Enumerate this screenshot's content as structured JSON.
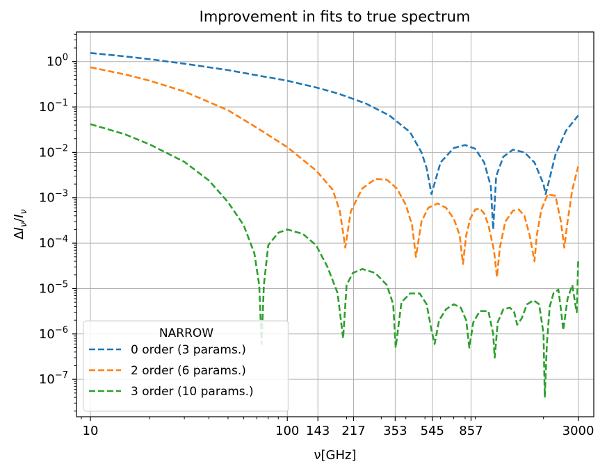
{
  "chart_data": {
    "type": "line",
    "title": "Improvement in fits to true spectrum",
    "xlabel": "ν[GHz]",
    "ylabel": "ΔIν/Iν",
    "x_scale": "log",
    "y_scale": "log",
    "xlim": [
      8.5,
      3600
    ],
    "ylim": [
      1.5e-08,
      4.5
    ],
    "grid": true,
    "x_ticks": [
      10,
      100,
      143,
      217,
      353,
      545,
      857,
      3000
    ],
    "x_tick_labels": [
      "10",
      "100",
      "143",
      "217",
      "353",
      "545",
      "857",
      "3000"
    ],
    "y_ticks": [
      1e-07,
      1e-06,
      1e-05,
      0.0001,
      0.001,
      0.01,
      0.1,
      1
    ],
    "y_tick_labels": [
      {
        "base": "10",
        "exp": "−7"
      },
      {
        "base": "10",
        "exp": "−6"
      },
      {
        "base": "10",
        "exp": "−5"
      },
      {
        "base": "10",
        "exp": "−4"
      },
      {
        "base": "10",
        "exp": "−3"
      },
      {
        "base": "10",
        "exp": "−2"
      },
      {
        "base": "10",
        "exp": "−1"
      },
      {
        "base": "10",
        "exp": "0"
      }
    ],
    "legend": {
      "title": "NARROW",
      "placement": "lower-left"
    },
    "series": [
      {
        "name": "0 order (3 params.)",
        "color": "#1f77b4",
        "style": "dashed",
        "x": [
          10,
          15,
          20,
          30,
          50,
          70,
          100,
          140,
          180,
          250,
          330,
          420,
          480,
          510,
          540,
          600,
          700,
          800,
          900,
          1000,
          1080,
          1110,
          1150,
          1250,
          1400,
          1600,
          1800,
          2000,
          2050,
          2100,
          2300,
          2600,
          3000
        ],
        "y": [
          1.55,
          1.3,
          1.13,
          0.9,
          0.65,
          0.5,
          0.38,
          0.27,
          0.2,
          0.12,
          0.065,
          0.028,
          0.01,
          0.0045,
          0.0012,
          0.006,
          0.0125,
          0.0145,
          0.012,
          0.006,
          0.0018,
          0.0002,
          0.003,
          0.008,
          0.0115,
          0.01,
          0.006,
          0.002,
          0.0012,
          0.0018,
          0.0089,
          0.03,
          0.065
        ]
      },
      {
        "name": "2 order (6 params.)",
        "color": "#ff7f0e",
        "style": "dashed",
        "x": [
          10,
          15,
          20,
          30,
          50,
          70,
          100,
          140,
          170,
          185,
          197,
          210,
          240,
          280,
          320,
          360,
          400,
          430,
          450,
          480,
          520,
          580,
          640,
          700,
          750,
          780,
          810,
          850,
          900,
          950,
          1000,
          1050,
          1120,
          1160,
          1200,
          1280,
          1400,
          1500,
          1600,
          1700,
          1800,
          1850,
          1950,
          2100,
          2300,
          2450,
          2550,
          2650,
          2800,
          3000
        ],
        "y": [
          0.75,
          0.52,
          0.38,
          0.22,
          0.085,
          0.035,
          0.013,
          0.004,
          0.0015,
          0.0005,
          8e-05,
          0.0005,
          0.0016,
          0.0026,
          0.0025,
          0.0016,
          0.0007,
          0.00025,
          5e-05,
          0.0003,
          0.0006,
          0.00075,
          0.0006,
          0.00035,
          0.00015,
          3.5e-05,
          0.00015,
          0.00035,
          0.00055,
          0.00058,
          0.00045,
          0.00025,
          7e-05,
          1.8e-05,
          8e-05,
          0.0003,
          0.00052,
          0.00055,
          0.0004,
          0.00015,
          4e-05,
          0.00015,
          0.00055,
          0.0012,
          0.0011,
          0.0003,
          8e-05,
          0.0003,
          0.0015,
          0.0049
        ]
      },
      {
        "name": "3 order (10 params.)",
        "color": "#2ca02c",
        "style": "dashed",
        "x": [
          10,
          15,
          20,
          30,
          40,
          50,
          60,
          68,
          72,
          74,
          76,
          80,
          90,
          100,
          120,
          140,
          160,
          180,
          192,
          200,
          215,
          240,
          280,
          320,
          345,
          355,
          380,
          420,
          470,
          510,
          540,
          560,
          590,
          640,
          700,
          760,
          810,
          840,
          880,
          950,
          1050,
          1110,
          1130,
          1170,
          1250,
          1350,
          1420,
          1470,
          1550,
          1650,
          1780,
          1900,
          2000,
          2030,
          2080,
          2150,
          2250,
          2380,
          2450,
          2520,
          2650,
          2800,
          2900,
          2950,
          3000
        ],
        "y": [
          0.042,
          0.025,
          0.015,
          0.0062,
          0.0024,
          0.0008,
          0.00025,
          6e-05,
          1.2e-05,
          6e-07,
          1.2e-05,
          9e-05,
          0.00017,
          0.0002,
          0.00016,
          9e-05,
          3e-05,
          8e-06,
          8e-07,
          1.2e-05,
          2.2e-05,
          2.7e-05,
          2.2e-05,
          1.2e-05,
          4.5e-06,
          5e-07,
          5e-06,
          7.8e-06,
          7.8e-06,
          4.5e-06,
          1.2e-06,
          6e-07,
          2e-06,
          3.5e-06,
          4.5e-06,
          3.8e-06,
          2e-06,
          5e-07,
          1.8e-06,
          3.2e-06,
          3.2e-06,
          1e-06,
          3e-07,
          1.8e-06,
          3.5e-06,
          3.8e-06,
          3e-06,
          1.6e-06,
          2.2e-06,
          4.5e-06,
          5.5e-06,
          4.5e-06,
          1e-06,
          4e-08,
          6e-07,
          4e-06,
          8e-06,
          9.5e-06,
          3.5e-06,
          1.2e-06,
          6e-06,
          1.2e-05,
          4.5e-06,
          3e-06,
          4e-05
        ]
      }
    ]
  }
}
